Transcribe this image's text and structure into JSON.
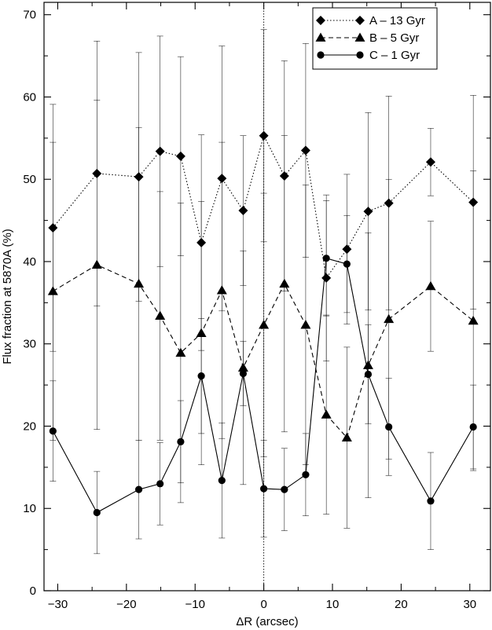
{
  "chart_data": {
    "type": "line",
    "title": "",
    "xlabel": "ΔR (arcsec)",
    "ylabel": "Flux fraction at 5870A (%)",
    "xlim": [
      -32,
      33
    ],
    "ylim": [
      0,
      71.5
    ],
    "xticks": [
      -30,
      -20,
      -10,
      0,
      10,
      20,
      30
    ],
    "yticks": [
      0,
      10,
      20,
      30,
      40,
      50,
      60,
      70
    ],
    "xtick_labels": [
      "−30",
      "−20",
      "−10",
      "0",
      "10",
      "20",
      "30"
    ],
    "ytick_labels": [
      "0",
      "10",
      "20",
      "30",
      "40",
      "50",
      "60",
      "70"
    ],
    "reference_line_x": 0,
    "legend": "top-right",
    "x": [
      -30.7,
      -24.3,
      -18.2,
      -15.1,
      -12.1,
      -9.1,
      -6.1,
      -3.0,
      0.0,
      3.0,
      6.1,
      9.1,
      12.1,
      15.2,
      18.2,
      24.3,
      30.5
    ],
    "series": [
      {
        "name": "A – 13 Gyr",
        "marker": "diamond",
        "line": "dotted",
        "values": [
          44.1,
          50.7,
          50.3,
          53.4,
          52.8,
          42.3,
          50.1,
          46.2,
          55.3,
          50.4,
          53.5,
          38.0,
          41.5,
          46.1,
          47.1,
          52.1,
          47.2
        ],
        "err": [
          15.0,
          16.1,
          15.1,
          14.0,
          12.1,
          13.1,
          16.1,
          9.1,
          12.9,
          14.0,
          13.0,
          10.1,
          9.1,
          12.0,
          13.0,
          4.1,
          13.0
        ]
      },
      {
        "name": "B – 5 Gyr",
        "marker": "triangle",
        "line": "dashed",
        "values": [
          36.4,
          39.6,
          37.3,
          33.4,
          28.9,
          31.3,
          36.5,
          27.1,
          32.3,
          37.3,
          32.3,
          21.4,
          18.6,
          27.4,
          33.0,
          37.0,
          32.8
        ],
        "err": [
          18.1,
          20.0,
          19.0,
          15.1,
          18.2,
          16.0,
          18.0,
          14.2,
          16.0,
          18.0,
          17.0,
          12.1,
          11.0,
          16.1,
          17.0,
          7.9,
          18.2
        ]
      },
      {
        "name": "C – 1 Gyr",
        "marker": "circle",
        "line": "solid",
        "values": [
          19.4,
          9.5,
          12.3,
          13.0,
          18.1,
          26.1,
          13.4,
          26.4,
          12.4,
          12.3,
          14.1,
          40.4,
          39.7,
          26.3,
          19.9,
          10.9,
          19.9
        ],
        "err": [
          6.1,
          5.0,
          6.0,
          5.0,
          5.0,
          7.0,
          7.0,
          3.9,
          5.9,
          5.0,
          5.0,
          7.0,
          5.9,
          6.0,
          5.9,
          5.9,
          5.1
        ]
      }
    ]
  }
}
